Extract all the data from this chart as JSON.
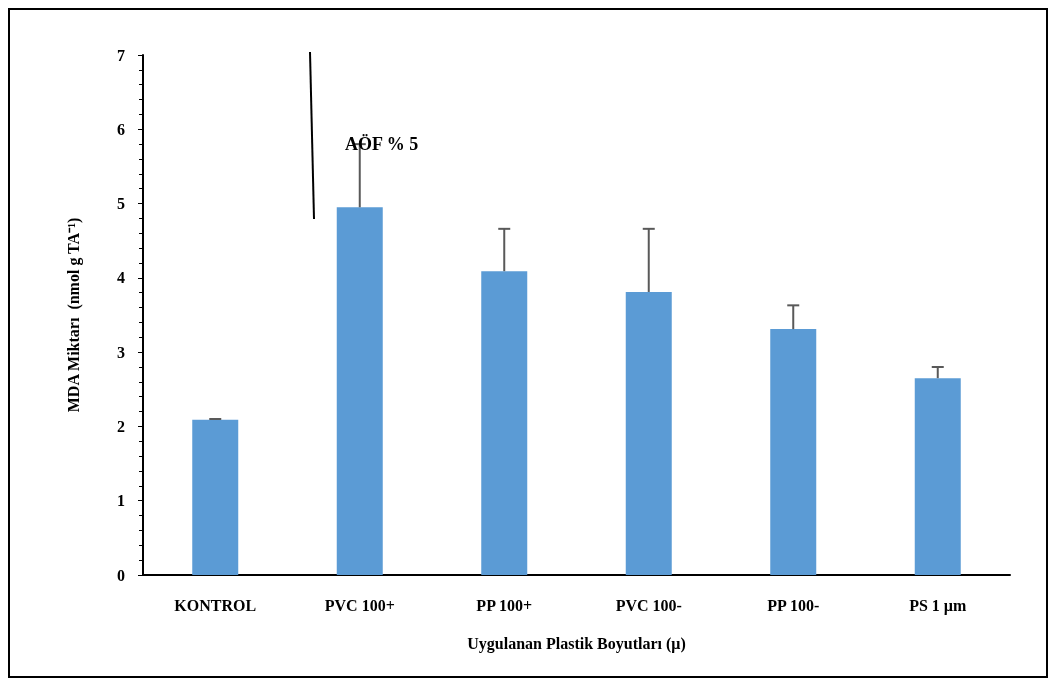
{
  "chart_data": {
    "type": "bar",
    "xlabel": "Uygulanan Plastik Boyutları (μ)",
    "ylabel": "MDA Miktarı  (nmol g TA⁻¹)",
    "categories": [
      "KONTROL",
      "PVC 100+",
      "PP 100+",
      "PVC 100-",
      "PP 100-",
      "PS 1 µm"
    ],
    "values": [
      2.09,
      4.95,
      4.09,
      3.81,
      3.31,
      2.65
    ],
    "errors": [
      [
        2.09,
        2.1
      ],
      [
        4.95,
        5.8
      ],
      [
        4.09,
        4.66
      ],
      [
        3.81,
        4.66
      ],
      [
        3.31,
        3.63
      ],
      [
        2.65,
        2.8
      ]
    ],
    "color": "#5b9bd5",
    "ylim": [
      0,
      7
    ],
    "yticks": [
      0,
      1,
      2,
      3,
      4,
      5,
      6,
      7
    ],
    "grid": false,
    "annotations": [
      "AÖF % 5"
    ]
  }
}
